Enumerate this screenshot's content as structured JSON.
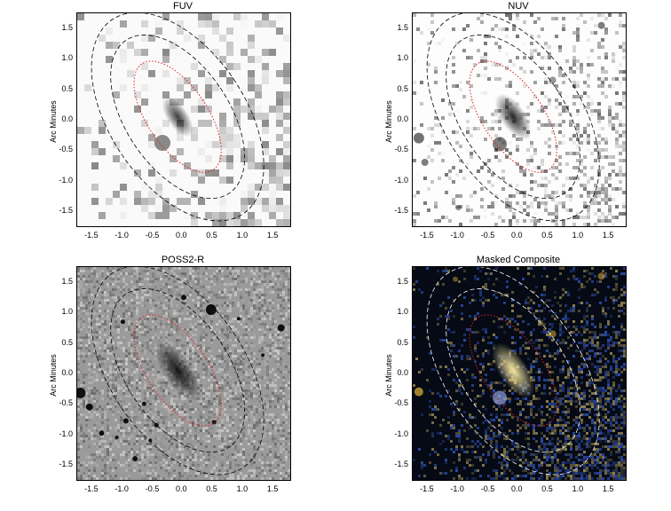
{
  "panels": [
    {
      "id": "fuv",
      "title": "FUV",
      "ylabel": "Arc Minutes",
      "style": "fuv"
    },
    {
      "id": "nuv",
      "title": "NUV",
      "ylabel": "Arc Minutes",
      "style": "nuv"
    },
    {
      "id": "poss",
      "title": "POSS2-R",
      "ylabel": "Arc Minutes",
      "style": "poss"
    },
    {
      "id": "composite",
      "title": "Masked Composite",
      "ylabel": "Arc Minutes",
      "style": "composite"
    }
  ],
  "x_ticks": [
    "-1.5",
    "-1.0",
    "-0.5",
    "0.0",
    "0.5",
    "1.0",
    "1.5"
  ],
  "y_ticks": [
    "1.5",
    "1.0",
    "0.5",
    "0.0",
    "-0.5",
    "-1.0",
    "-1.5"
  ],
  "colors": {
    "inner_ellipse": "#e02020",
    "outer_ellipse_dark": "#000000",
    "outer_ellipse_light": "#ffffff",
    "composite_bg": "#050a14",
    "composite_galaxy": "#f4e6a0",
    "composite_blue": "#3050b0"
  }
}
